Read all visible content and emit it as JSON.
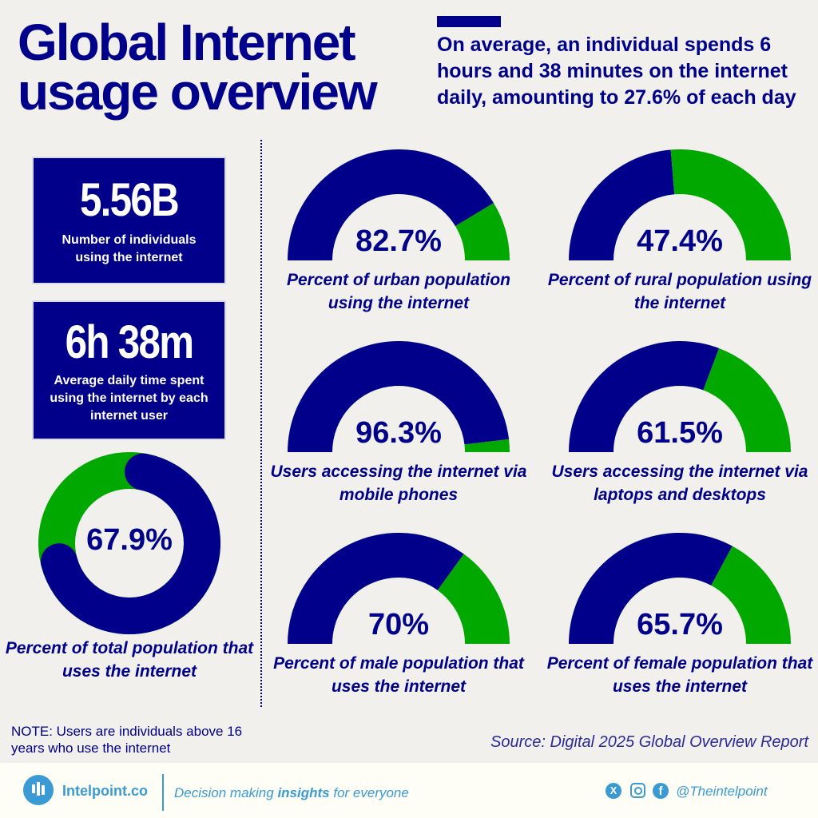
{
  "header": {
    "title_line1": "Global Internet",
    "title_line2": "usage overview",
    "subtitle": "On average, an individual spends 6 hours and 38 minutes on the internet daily, amounting to 27.6% of each day"
  },
  "stats": [
    {
      "value": "5.56B",
      "label": "Number of individuals using the internet"
    },
    {
      "value": "6h 38m",
      "label": "Average daily time spent using the internet by each internet user"
    }
  ],
  "colors": {
    "primary": "#00008b",
    "secondary": "#00a800",
    "background": "#f1f0ed"
  },
  "chart_data": [
    {
      "type": "pie",
      "subtype": "donut",
      "value": 67.9,
      "label": "67.9%",
      "caption": "Percent of total population that uses the internet"
    },
    {
      "type": "gauge",
      "value": 82.7,
      "label": "82.7%",
      "caption": "Percent of urban population using the internet"
    },
    {
      "type": "gauge",
      "value": 47.4,
      "label": "47.4%",
      "caption": "Percent of rural population using the internet"
    },
    {
      "type": "gauge",
      "value": 96.3,
      "label": "96.3%",
      "caption": "Users accessing the internet via mobile phones"
    },
    {
      "type": "gauge",
      "value": 61.5,
      "label": "61.5%",
      "caption": "Users accessing the internet via laptops and desktops"
    },
    {
      "type": "gauge",
      "value": 70,
      "label": "70%",
      "caption": "Percent of male population that uses the internet"
    },
    {
      "type": "gauge",
      "value": 65.7,
      "label": "65.7%",
      "caption": "Percent of female population that uses the internet"
    }
  ],
  "note": "NOTE: Users are individuals above 16 years who use the internet",
  "source": "Source: Digital 2025 Global Overview Report",
  "footer": {
    "brand": "Intelpoint.co",
    "tagline_pre": "Decision making ",
    "tagline_bold": "insights",
    "tagline_post": " for everyone",
    "handle": "@Theintelpoint"
  }
}
